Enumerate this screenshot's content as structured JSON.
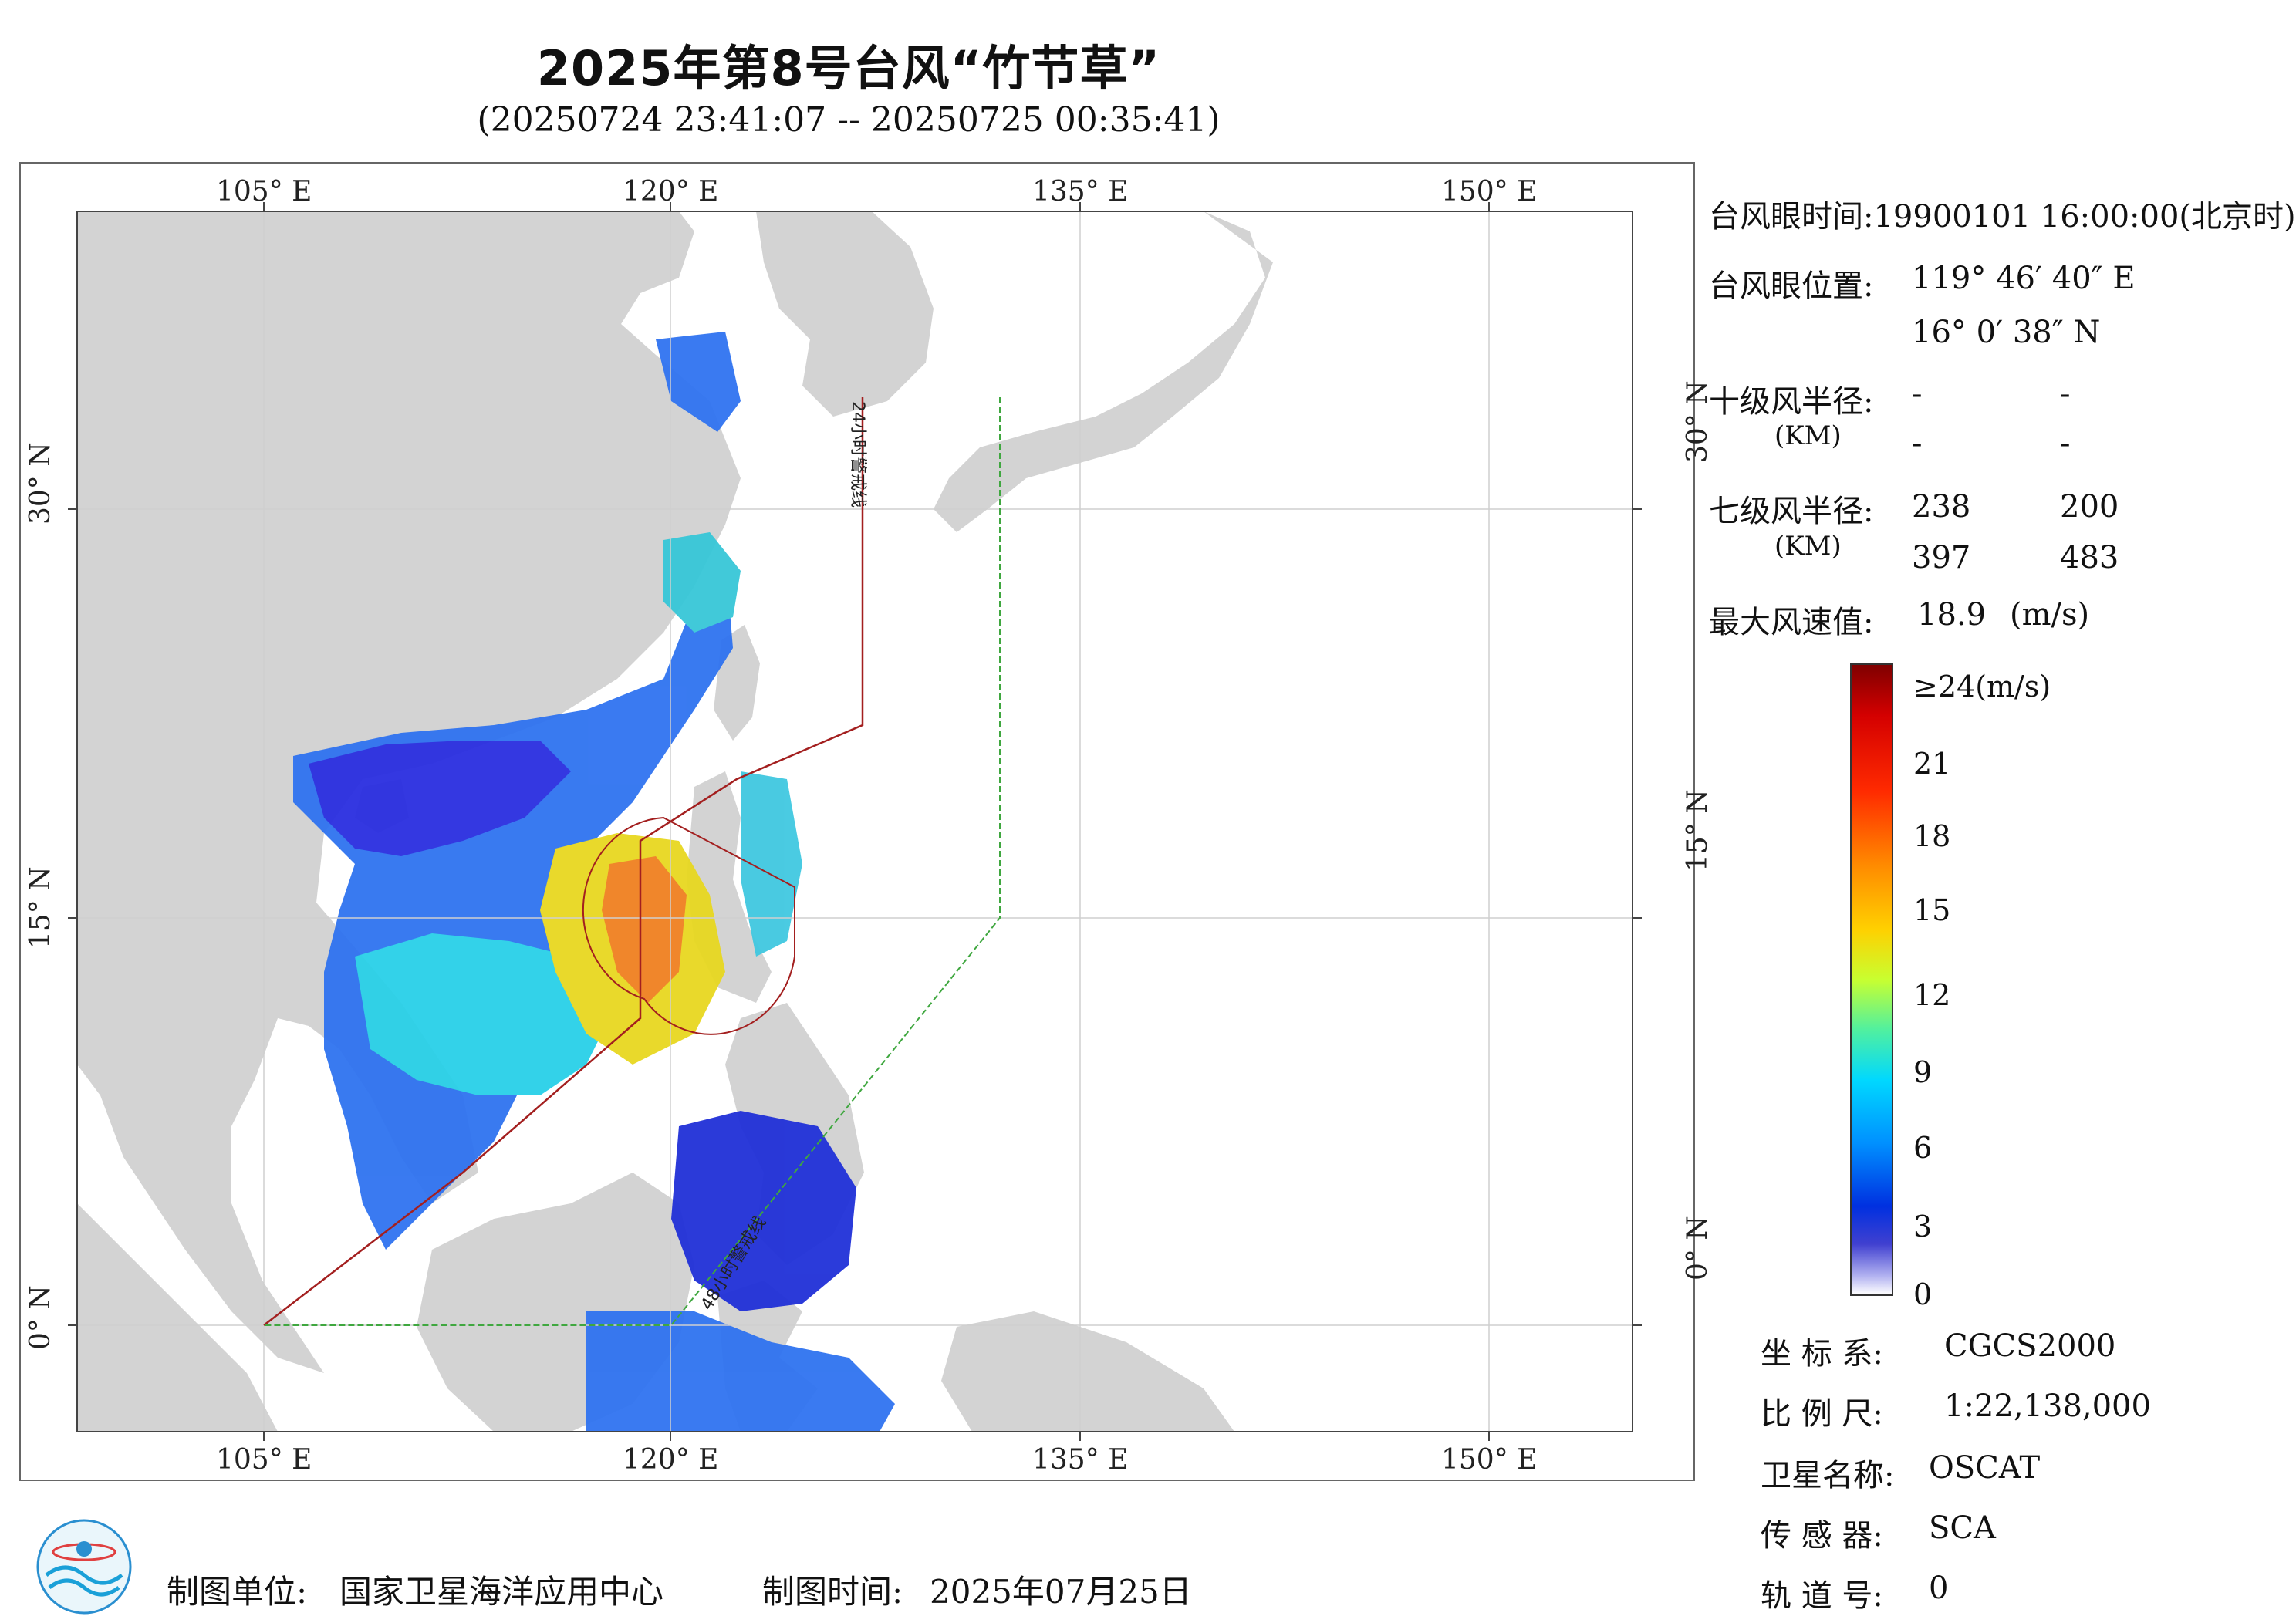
{
  "header": {
    "title": "2025年第8号台风“竹节草”",
    "subtitle": "(20250724 23:41:07 -- 20250725 00:35:41)"
  },
  "map": {
    "lon_labels": [
      "105° E",
      "120° E",
      "135° E",
      "150° E"
    ],
    "lat_labels": [
      "30° N",
      "15° N",
      "0° N"
    ],
    "warning_line_24h": "24小时警戒线",
    "warning_line_48h": "48小时警戒线",
    "colors": {
      "land": "#d3d3d3",
      "sea": "#ffffff",
      "warning_24h": "#a31f1f",
      "warning_48h": "#3fa73f"
    }
  },
  "typhoon_info": {
    "eye_time": "台风眼时间:19900101 16:00:00(北京时)",
    "eye_pos_label": "台风眼位置:",
    "eye_lon": "119° 46′ 40″ E",
    "eye_lat": "16° 0′ 38″ N",
    "r10_label": "十级风半径:",
    "km_label": "(KM)",
    "r10_values": [
      "-",
      "-",
      "-",
      "-"
    ],
    "r7_label": "七级风半径:",
    "r7_values": [
      "238",
      "200",
      "397",
      "483"
    ],
    "max_wind_label": "最大风速值:",
    "max_wind_value": "18.9",
    "max_wind_unit": "(m/s)"
  },
  "colorbar": {
    "labels": [
      "≥24(m/s)",
      "21",
      "18",
      "15",
      "12",
      "9",
      "6",
      "3",
      "0"
    ],
    "stops": [
      "#7f0000",
      "#ff0000",
      "#ff8c00",
      "#ffff00",
      "#80ff80",
      "#00e5ff",
      "#0080ff",
      "#0000d0",
      "#ffffff"
    ]
  },
  "meta": {
    "crs_label": "坐 标 系:",
    "crs_value": "CGCS2000",
    "scale_label": "比 例 尺:",
    "scale_value": "1:22,138,000",
    "sat_label": "卫星名称:",
    "sat_value": "OSCAT",
    "sensor_label": "传 感 器:",
    "sensor_value": "SCA",
    "orbit_label": "轨 道 号:",
    "orbit_value": "0"
  },
  "footer": {
    "unit_label": "制图单位:",
    "unit_value": "国家卫星海洋应用中心",
    "time_label": "制图时间:",
    "time_value": "2025年07月25日"
  }
}
